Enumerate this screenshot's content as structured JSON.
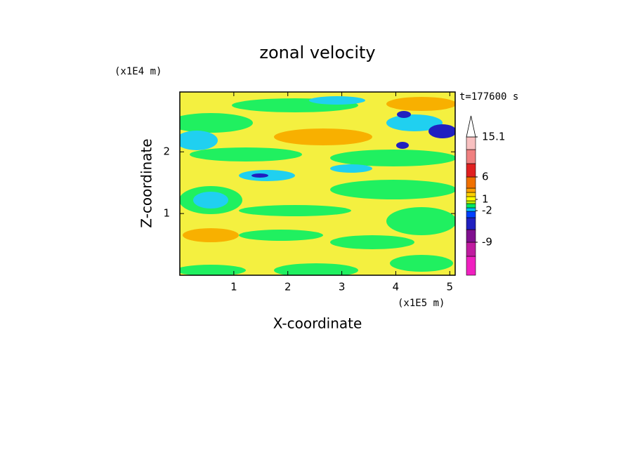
{
  "chart_data": {
    "type": "contour",
    "title": "zonal velocity",
    "x_label": "X-coordinate",
    "y_label": "Z-coordinate",
    "x_unit": "(x1E5 m)",
    "y_unit": "(x1E4 m)",
    "annotation": "t=177600 s",
    "xlim": [
      0,
      5.1
    ],
    "ylim": [
      0,
      2.97
    ],
    "xticks": [
      1,
      2,
      3,
      4,
      5
    ],
    "yticks": [
      1,
      2
    ],
    "colorbar": {
      "labels": [
        15.1,
        6,
        1,
        -2,
        -9
      ],
      "colors": [
        "#f020c0",
        "#c01ca0",
        "#80108f",
        "#2020c0",
        "#0040ff",
        "#00c0ff",
        "#00e860",
        "#c0f000",
        "#ffff00",
        "#ffd000",
        "#ffa000",
        "#f07000",
        "#e02020",
        "#f08080",
        "#f8c0c0",
        "#ffffff"
      ]
    }
  }
}
